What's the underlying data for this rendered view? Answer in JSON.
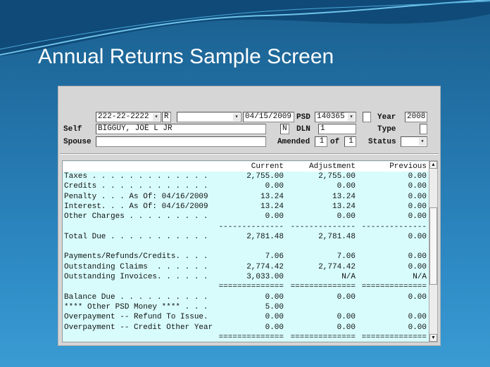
{
  "slide": {
    "title": "Annual Returns Sample Screen"
  },
  "form": {
    "ssn": "222-22-2222",
    "r_field": "R",
    "combo_blank": "",
    "date": "04/15/2009",
    "psd_label": "PSD",
    "psd": "140365",
    "year_label": "Year",
    "year": "2008",
    "self_label": "Self",
    "self_name": "BIGGUY, JOE L JR",
    "n_field": "N",
    "dln_label": "DLN",
    "dln": "1",
    "type_label": "Type",
    "type": "",
    "spouse_label": "Spouse",
    "spouse": "",
    "amended_label": "Amended",
    "amended": "1",
    "of_label": "of",
    "of_total": "1",
    "status_label": "Status",
    "status": ""
  },
  "table": {
    "headers": [
      "",
      "Current",
      "Adjustment",
      "Previous"
    ],
    "rows": [
      {
        "label": "Taxes . . . . . . . . . . . . .",
        "current": "2,755.00",
        "adjustment": "2,755.00",
        "previous": "0.00"
      },
      {
        "label": "Credits . . . . . . . . . . . .",
        "current": "0.00",
        "adjustment": "0.00",
        "previous": "0.00"
      },
      {
        "label": "Penalty . . . As Of: 04/16/2009",
        "current": "13.24",
        "adjustment": "13.24",
        "previous": "0.00"
      },
      {
        "label": "Interest. . . As Of: 04/16/2009",
        "current": "13.24",
        "adjustment": "13.24",
        "previous": "0.00"
      },
      {
        "label": "Other Charges . . . . . . . . .",
        "current": "0.00",
        "adjustment": "0.00",
        "previous": "0.00"
      },
      {
        "label": "",
        "current": "--------------",
        "adjustment": "--------------",
        "previous": "--------------"
      },
      {
        "label": "Total Due . . . . . . . . . . .",
        "current": "2,781.48",
        "adjustment": "2,781.48",
        "previous": "0.00"
      },
      {
        "label": "",
        "current": "",
        "adjustment": "",
        "previous": ""
      },
      {
        "label": "Payments/Refunds/Credits. . . .",
        "current": "7.06",
        "adjustment": "7.06",
        "previous": "0.00"
      },
      {
        "label": "Outstanding Claims  . . . . . .",
        "current": "2,774.42",
        "adjustment": "2,774.42",
        "previous": "0.00"
      },
      {
        "label": "Outstanding Invoices. . . . . .",
        "current": "3,033.00",
        "adjustment": "N/A",
        "previous": "N/A"
      },
      {
        "label": "",
        "current": "==============",
        "adjustment": "==============",
        "previous": "=============="
      },
      {
        "label": "Balance Due . . . . . . . . . .",
        "current": "0.00",
        "adjustment": "0.00",
        "previous": "0.00"
      },
      {
        "label": "**** Other PSD Money **** . . .",
        "current": "5.00",
        "adjustment": "",
        "previous": ""
      },
      {
        "label": "Overpayment -- Refund To Issue.",
        "current": "0.00",
        "adjustment": "0.00",
        "previous": "0.00"
      },
      {
        "label": "Overpayment -- Credit Other Year",
        "current": "0.00",
        "adjustment": "0.00",
        "previous": "0.00"
      },
      {
        "label": "",
        "current": "==============",
        "adjustment": "==============",
        "previous": "=============="
      }
    ]
  },
  "icons": {
    "dropdown": "dropdown-arrow-icon",
    "scroll_up": "scroll-up-icon",
    "scroll_down": "scroll-down-icon"
  }
}
